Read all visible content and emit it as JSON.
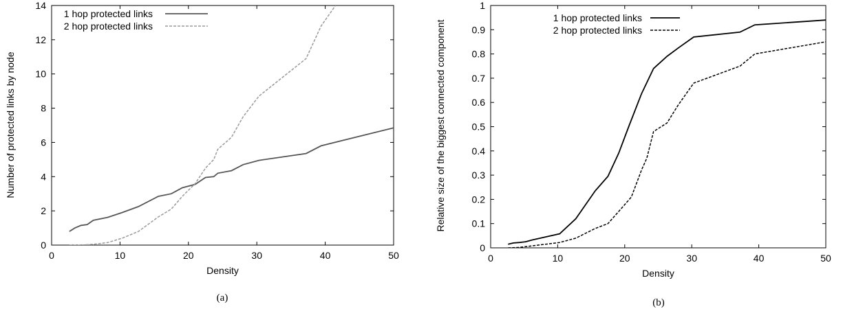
{
  "chart_data": [
    {
      "type": "line",
      "caption": "(a)",
      "xlabel": "Density",
      "ylabel": "Number of protected links by node",
      "xlim": [
        0,
        50
      ],
      "ylim": [
        0,
        14
      ],
      "xticks": [
        0,
        10,
        20,
        30,
        40,
        50
      ],
      "yticks": [
        0,
        2,
        4,
        6,
        8,
        10,
        12,
        14
      ],
      "legend_position": "top-left",
      "series": [
        {
          "name": "1 hop protected links",
          "style": "solid",
          "color": "#555555",
          "x": [
            2.6,
            3.4,
            4.3,
            5.2,
            6.1,
            8.2,
            10.3,
            12.7,
            15.6,
            17.5,
            19.1,
            21,
            22.5,
            23.7,
            24.3,
            26.3,
            28,
            30.3,
            37.2,
            39.4,
            50
          ],
          "y": [
            0.8,
            1.0,
            1.15,
            1.2,
            1.45,
            1.62,
            1.9,
            2.25,
            2.85,
            3.0,
            3.35,
            3.55,
            3.95,
            4.0,
            4.2,
            4.35,
            4.7,
            4.95,
            5.35,
            5.8,
            6.85
          ]
        },
        {
          "name": "2 hop protected links",
          "style": "dashed",
          "color": "#999999",
          "x": [
            2.6,
            4.3,
            6.1,
            8.2,
            10.3,
            12.7,
            15.6,
            17.5,
            19.1,
            21,
            22.5,
            23.7,
            24.3,
            26.3,
            28,
            30.3,
            37.2,
            39.4,
            41.5
          ],
          "y": [
            0,
            0,
            0.05,
            0.15,
            0.4,
            0.8,
            1.65,
            2.1,
            2.85,
            3.6,
            4.5,
            5.0,
            5.6,
            6.3,
            7.5,
            8.7,
            10.9,
            12.8,
            14.0
          ]
        }
      ]
    },
    {
      "type": "line",
      "caption": "(b)",
      "xlabel": "Density",
      "ylabel": "Relative size of the biggest connected component",
      "xlim": [
        0,
        50
      ],
      "ylim": [
        0,
        1
      ],
      "xticks": [
        0,
        10,
        20,
        30,
        40,
        50
      ],
      "yticks": [
        "0",
        "0.1",
        "0.2",
        "0.3",
        "0.4",
        "0.5",
        "0.6",
        "0.7",
        "0.8",
        "0.9",
        "1"
      ],
      "legend_position": "top-center",
      "series": [
        {
          "name": "1 hop protected links",
          "style": "solid",
          "color": "#000000",
          "x": [
            2.6,
            3.4,
            4.3,
            5.2,
            6.1,
            8.2,
            10.3,
            12.7,
            15.6,
            17.5,
            19.1,
            20.6,
            22.5,
            24.3,
            26.3,
            28,
            30.3,
            37.2,
            39.4,
            50
          ],
          "y": [
            0.015,
            0.02,
            0.022,
            0.025,
            0.032,
            0.045,
            0.058,
            0.12,
            0.235,
            0.295,
            0.39,
            0.5,
            0.635,
            0.74,
            0.79,
            0.825,
            0.87,
            0.89,
            0.92,
            0.94
          ]
        },
        {
          "name": "2 hop protected links",
          "style": "dashed",
          "color": "#000000",
          "x": [
            2.6,
            4.3,
            6.1,
            8.2,
            10.3,
            12.7,
            15.6,
            17.5,
            19.1,
            21,
            22.5,
            23.3,
            24.3,
            26.3,
            28,
            30.3,
            37.2,
            39.4,
            50
          ],
          "y": [
            0,
            0.002,
            0.008,
            0.015,
            0.022,
            0.04,
            0.08,
            0.1,
            0.15,
            0.21,
            0.32,
            0.37,
            0.48,
            0.515,
            0.59,
            0.68,
            0.75,
            0.8,
            0.85
          ]
        }
      ]
    }
  ]
}
